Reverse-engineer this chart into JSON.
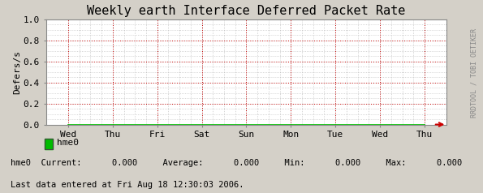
{
  "title": "Weekly earth Interface Deferred Packet Rate",
  "ylabel": "Defers/s",
  "ylim": [
    0.0,
    1.0
  ],
  "yticks": [
    0.0,
    0.2,
    0.4,
    0.6,
    0.8,
    1.0
  ],
  "xtick_labels": [
    "Wed",
    "Thu",
    "Fri",
    "Sat",
    "Sun",
    "Mon",
    "Tue",
    "Wed",
    "Thu"
  ],
  "bg_color": "#d4d0c8",
  "plot_bg_color": "#ffffff",
  "grid_minor_color": "#b0b0b0",
  "grid_major_color": "#cc0000",
  "line_color": "#00bb00",
  "arrow_color": "#cc0000",
  "legend_label": "hme0",
  "legend_color": "#00bb00",
  "stats_text": "hme0  Current:      0.000     Average:      0.000     Min:      0.000     Max:      0.000",
  "footer_text": "Last data entered at Fri Aug 18 12:30:03 2006.",
  "watermark": "RRDTOOL / TOBI OETIKER",
  "title_fontsize": 11,
  "axis_fontsize": 8,
  "tick_fontsize": 8,
  "watermark_fontsize": 6
}
